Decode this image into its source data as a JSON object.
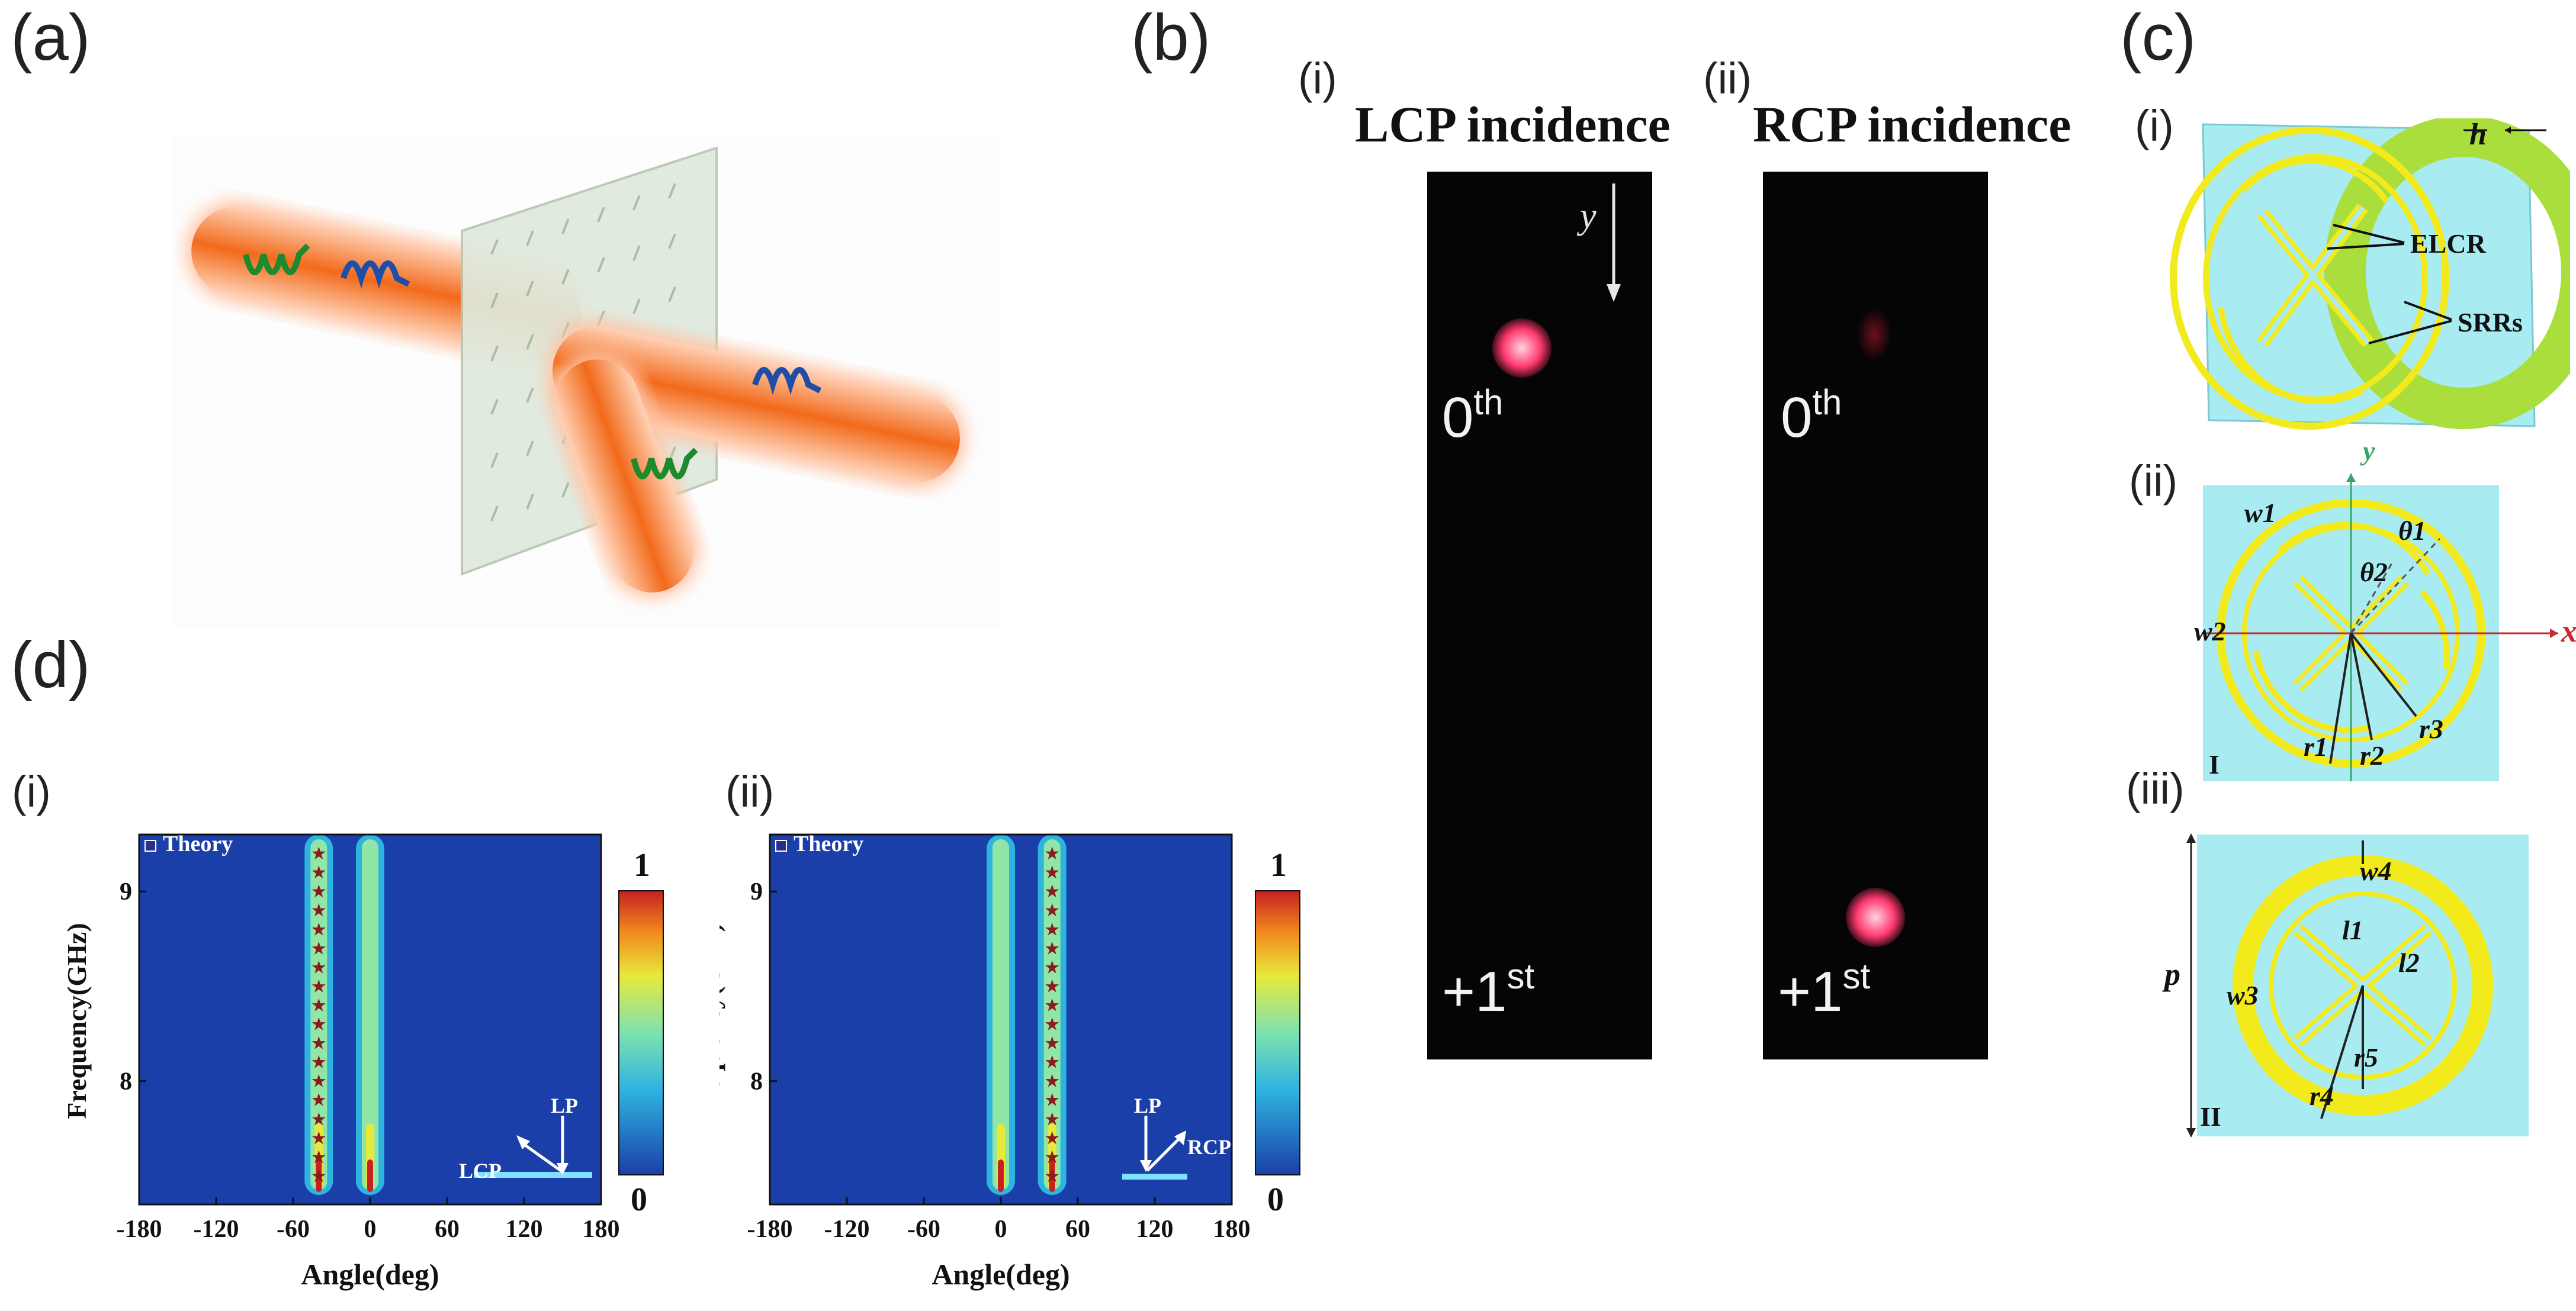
{
  "panels": {
    "a": {
      "label": "(a)"
    },
    "b": {
      "label": "(b)",
      "sub_i": "(i)",
      "sub_ii": "(ii)",
      "title_i": "LCP incidence",
      "title_ii": "RCP incidence",
      "axis_label": "y",
      "order_zero": "0",
      "order_zero_sup": "th",
      "order_first": "+1",
      "order_first_sup": "st"
    },
    "c": {
      "label": "(c)",
      "sub_i": "(i)",
      "sub_ii": "(ii)",
      "sub_iii": "(iii)",
      "h_label": "h",
      "elcr_label": "ELCR",
      "srrs_label": "SRRs",
      "x_label": "x",
      "y_label": "y",
      "w1": "w1",
      "w2": "w2",
      "w3": "w3",
      "w4": "w4",
      "theta1": "θ1",
      "theta2": "θ2",
      "r1": "r1",
      "r2": "r2",
      "r3": "r3",
      "r4": "r4",
      "r5": "r5",
      "l1": "l1",
      "l2": "l2",
      "p_label": "p",
      "roman_I": "I",
      "roman_II": "II"
    },
    "d": {
      "label": "(d)",
      "sub_i": "(i)",
      "sub_ii": "(ii)",
      "legend": "Theory",
      "ylabel": "Frequency(GHz)",
      "xlabel": "Angle(deg)",
      "lp": "LP",
      "lcp": "LCP",
      "rcp": "RCP",
      "cbar_max": "1",
      "cbar_min": "0"
    }
  },
  "colors": {
    "beam_orange": "#f26a1b",
    "metasurface_green": "#dfe9dc",
    "ring_yellow": "#f2ea1a",
    "cell_cyan": "#a8ecf2",
    "heatmap_blue": "#1a3fa8",
    "spot_pink": "#ff3a6e"
  },
  "chart_data": [
    {
      "type": "heatmap",
      "panel": "d(i)",
      "xlabel": "Angle(deg)",
      "ylabel": "Frequency(GHz)",
      "xlim": [
        -180,
        180
      ],
      "ylim": [
        7.35,
        9.3
      ],
      "xticks": [
        -180,
        -120,
        -60,
        0,
        60,
        120,
        180
      ],
      "yticks": [
        8,
        9
      ],
      "colorbar": [
        0,
        1
      ],
      "legend": "Theory",
      "incidence": "LCP",
      "series": [
        {
          "name": "Theory",
          "x": [
            -40,
            -40,
            -40,
            -40,
            -40,
            -40,
            -40,
            -40,
            -40,
            -40,
            -40,
            -40,
            -40,
            -40,
            -40,
            -40,
            -40,
            -40
          ],
          "y": [
            9.2,
            9.1,
            9.0,
            8.9,
            8.8,
            8.7,
            8.6,
            8.5,
            8.4,
            8.3,
            8.2,
            8.1,
            8.0,
            7.9,
            7.8,
            7.7,
            7.6,
            7.5
          ]
        }
      ],
      "bands": [
        {
          "name": "+1st order",
          "angle": -40,
          "fmin": 7.4,
          "fmax": 9.3
        },
        {
          "name": "0th order",
          "angle": 0,
          "fmin": 7.4,
          "fmax": 9.3
        }
      ]
    },
    {
      "type": "heatmap",
      "panel": "d(ii)",
      "xlabel": "Angle(deg)",
      "ylabel": "Frequency(GHz)",
      "xlim": [
        -180,
        180
      ],
      "ylim": [
        7.35,
        9.3
      ],
      "xticks": [
        -180,
        -120,
        -60,
        0,
        60,
        120,
        180
      ],
      "yticks": [
        8,
        9
      ],
      "colorbar": [
        0,
        1
      ],
      "legend": "Theory",
      "incidence": "RCP",
      "series": [
        {
          "name": "Theory",
          "x": [
            40,
            40,
            40,
            40,
            40,
            40,
            40,
            40,
            40,
            40,
            40,
            40,
            40,
            40,
            40,
            40,
            40,
            40
          ],
          "y": [
            9.2,
            9.1,
            9.0,
            8.9,
            8.8,
            8.7,
            8.6,
            8.5,
            8.4,
            8.3,
            8.2,
            8.1,
            8.0,
            7.9,
            7.8,
            7.7,
            7.6,
            7.5
          ]
        }
      ],
      "bands": [
        {
          "name": "0th order",
          "angle": 0,
          "fmin": 7.4,
          "fmax": 9.3
        },
        {
          "name": "+1st order",
          "angle": 40,
          "fmin": 7.4,
          "fmax": 9.3
        }
      ]
    }
  ]
}
